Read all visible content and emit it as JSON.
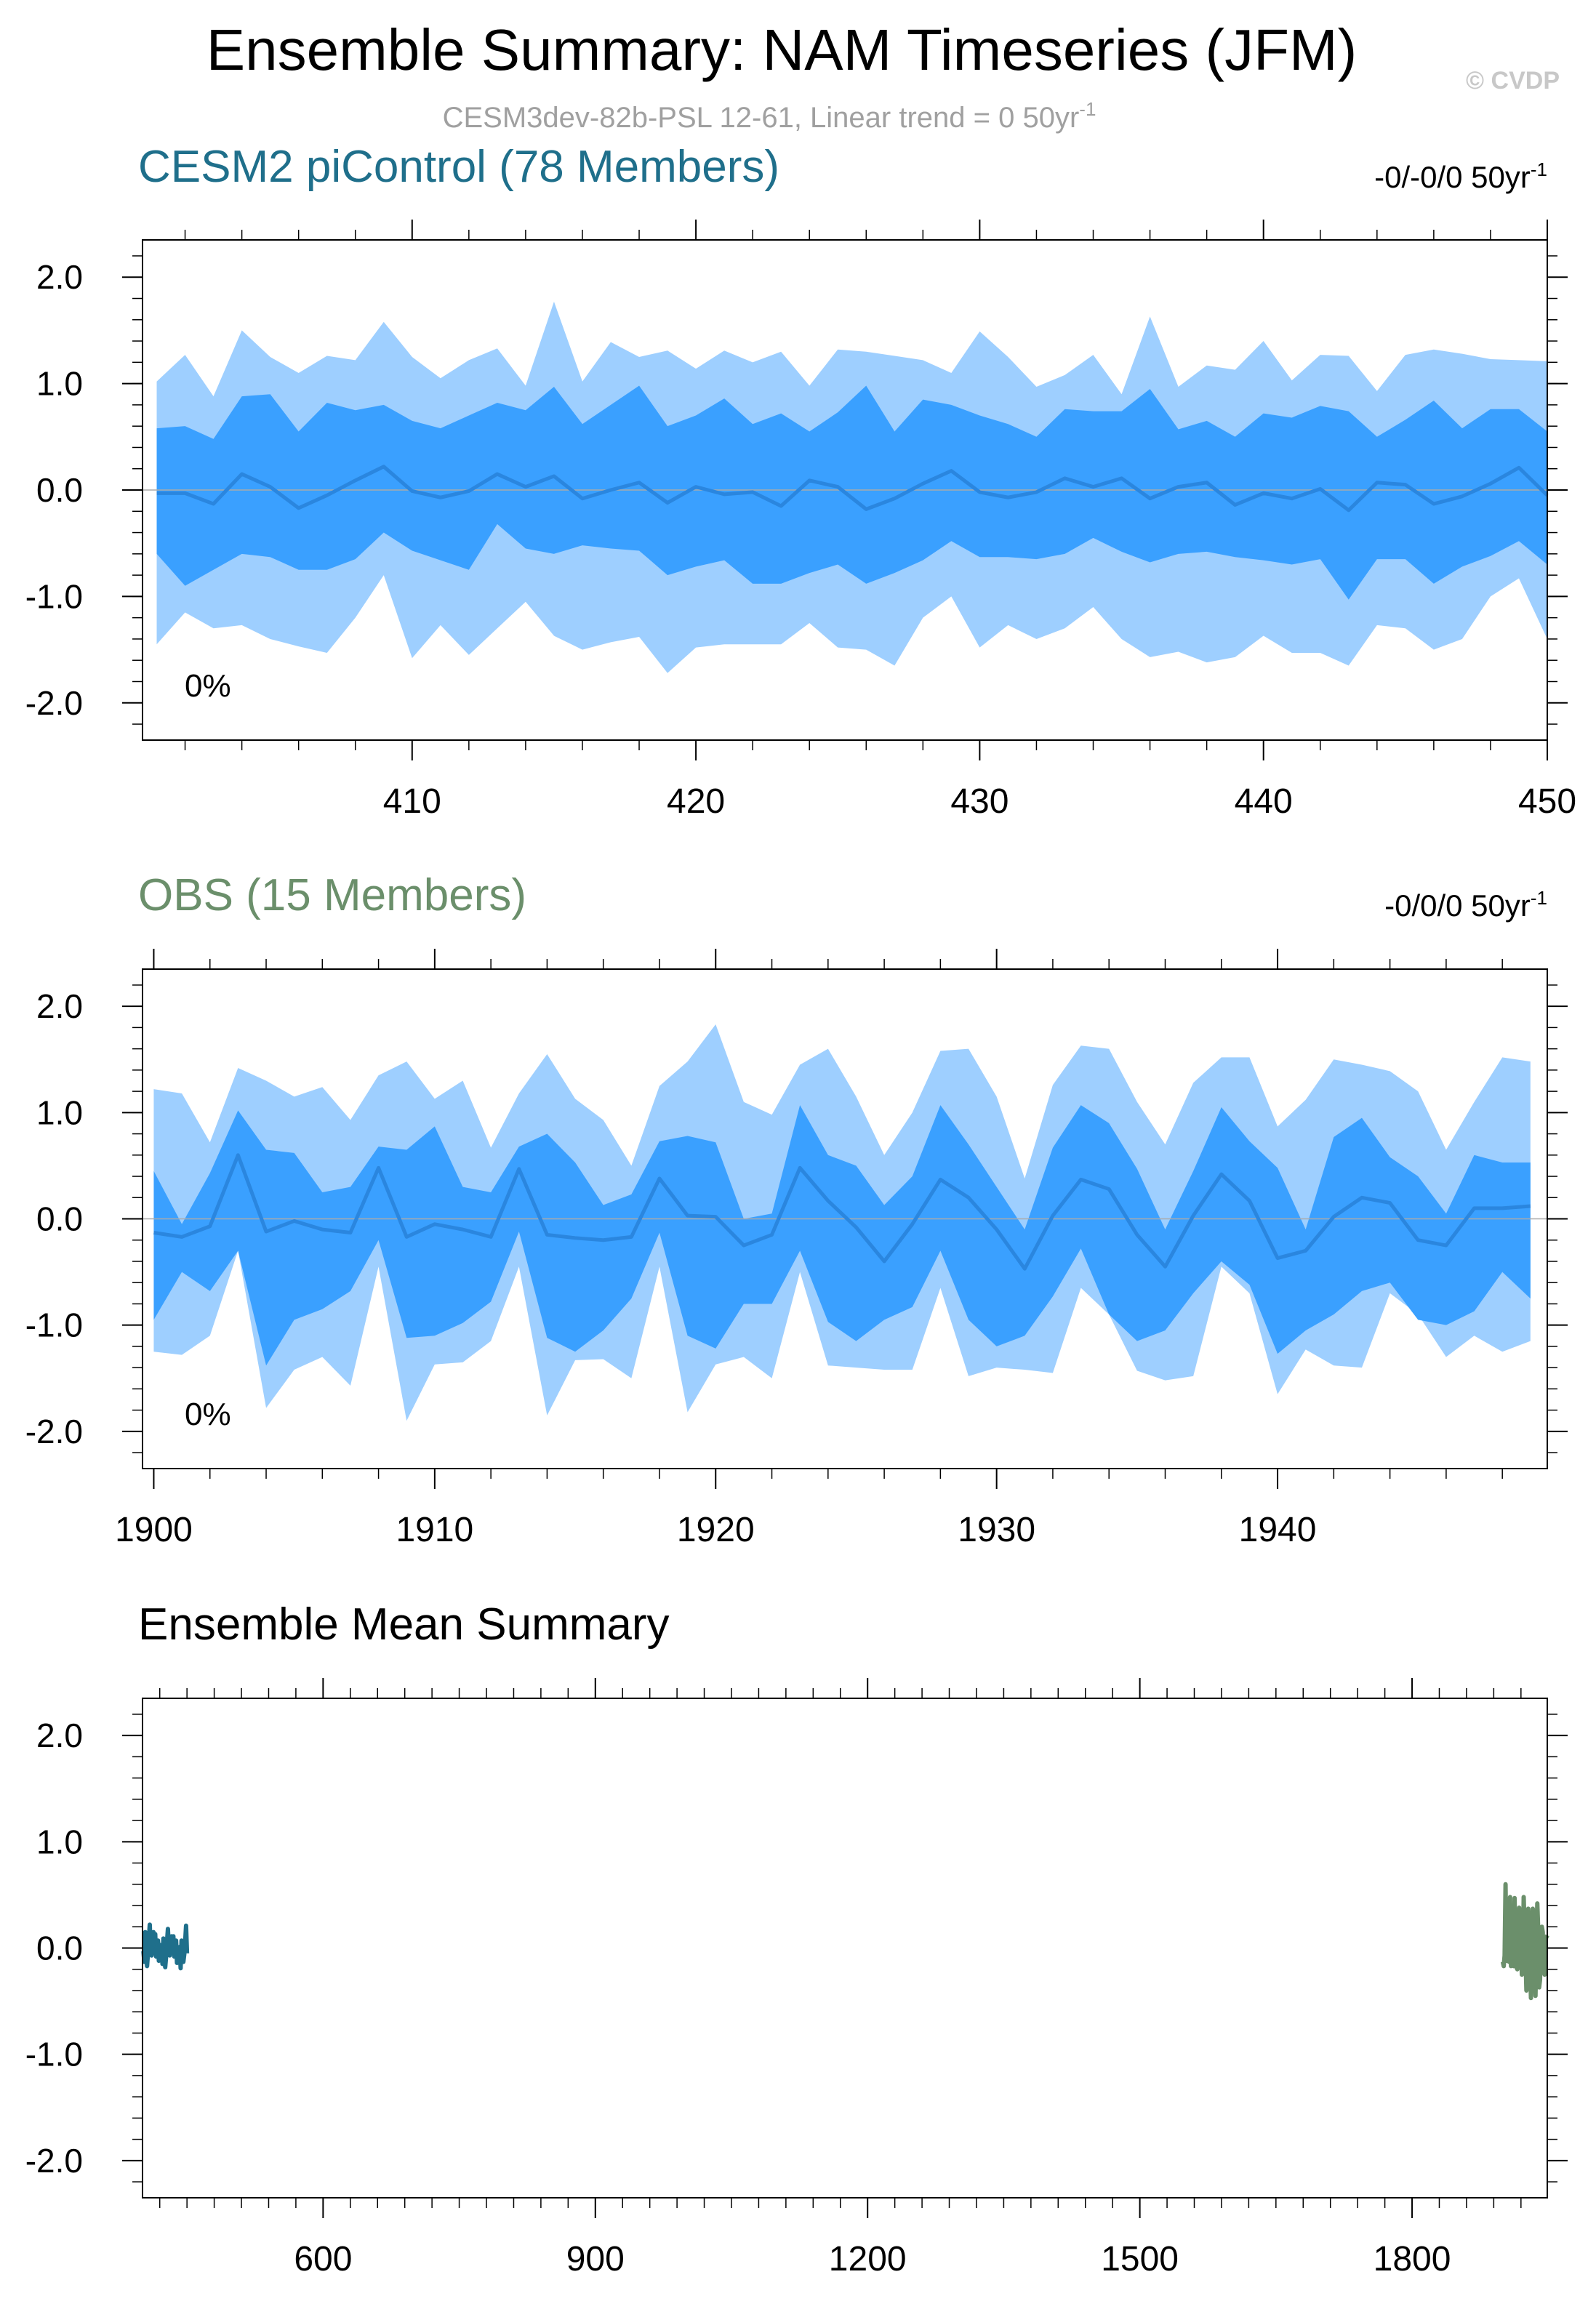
{
  "title": "Ensemble Summary: NAM Timeseries (JFM)",
  "watermark": "© CVDP",
  "subtitle": "CESM3dev-82b-PSL 12-61, Linear trend = 0 50yr",
  "subtitle_sup": "-1",
  "colors": {
    "band_outer": "#9ecfff",
    "band_inner": "#3aa0ff",
    "mean_line": "#2a86df",
    "model_title": "#1f6f8b",
    "obs_title": "#6b8f6b",
    "model_series": "#1f6f8b",
    "obs_series": "#6b8f6b",
    "zero_line": "#aaaaaa",
    "subtitle": "#a0a0a0"
  },
  "chart_data": [
    {
      "type": "area",
      "title": "CESM2 piControl (78 Members)",
      "trend_label": "-0/-0/0 50yr",
      "trend_sup": "-1",
      "pct_label": "0%",
      "x_start": 401,
      "xlim": [
        400.5,
        450
      ],
      "ylim": [
        -2.35,
        2.35
      ],
      "x_ticks": [
        410,
        420,
        430,
        440,
        450
      ],
      "y_ticks": [
        2.0,
        1.0,
        0.0,
        -1.0,
        -2.0
      ],
      "y_tick_labels": [
        "2.0",
        "1.0",
        "0.0",
        "-1.0",
        "-2.0"
      ],
      "series": [
        {
          "name": "max",
          "values": [
            1.02,
            1.27,
            0.88,
            1.5,
            1.25,
            1.1,
            1.26,
            1.22,
            1.58,
            1.25,
            1.05,
            1.22,
            1.33,
            0.98,
            1.77,
            1.02,
            1.39,
            1.25,
            1.31,
            1.14,
            1.31,
            1.2,
            1.3,
            0.98,
            1.32,
            1.3,
            1.26,
            1.22,
            1.1,
            1.49,
            1.25,
            0.97,
            1.08,
            1.27,
            0.9,
            1.63,
            0.97,
            1.17,
            1.13,
            1.4,
            1.03,
            1.27,
            1.26,
            0.93,
            1.27,
            1.32,
            1.28,
            1.23,
            1.22,
            1.21
          ]
        },
        {
          "name": "p90",
          "values": [
            0.58,
            0.6,
            0.48,
            0.88,
            0.9,
            0.55,
            0.82,
            0.75,
            0.8,
            0.65,
            0.58,
            0.7,
            0.82,
            0.75,
            0.97,
            0.62,
            0.8,
            0.98,
            0.6,
            0.7,
            0.86,
            0.62,
            0.72,
            0.55,
            0.73,
            0.98,
            0.55,
            0.85,
            0.8,
            0.7,
            0.62,
            0.5,
            0.76,
            0.74,
            0.74,
            0.95,
            0.57,
            0.65,
            0.5,
            0.72,
            0.68,
            0.79,
            0.74,
            0.5,
            0.66,
            0.84,
            0.58,
            0.76,
            0.76,
            0.55
          ]
        },
        {
          "name": "mean",
          "values": [
            -0.03,
            -0.03,
            -0.13,
            0.15,
            0.03,
            -0.17,
            -0.05,
            0.09,
            0.22,
            -0.01,
            -0.07,
            -0.01,
            0.15,
            0.03,
            0.13,
            -0.08,
            0.0,
            0.07,
            -0.12,
            0.03,
            -0.04,
            -0.02,
            -0.15,
            0.09,
            0.03,
            -0.18,
            -0.08,
            0.06,
            0.18,
            -0.02,
            -0.07,
            -0.02,
            0.11,
            0.03,
            0.11,
            -0.08,
            0.03,
            0.07,
            -0.14,
            -0.03,
            -0.08,
            0.01,
            -0.19,
            0.07,
            0.05,
            -0.13,
            -0.06,
            0.06,
            0.21,
            -0.05
          ]
        },
        {
          "name": "p10",
          "values": [
            -0.6,
            -0.9,
            -0.75,
            -0.6,
            -0.63,
            -0.75,
            -0.75,
            -0.65,
            -0.4,
            -0.57,
            -0.66,
            -0.75,
            -0.32,
            -0.55,
            -0.6,
            -0.52,
            -0.55,
            -0.57,
            -0.8,
            -0.72,
            -0.66,
            -0.88,
            -0.88,
            -0.78,
            -0.7,
            -0.88,
            -0.78,
            -0.66,
            -0.48,
            -0.63,
            -0.63,
            -0.65,
            -0.6,
            -0.45,
            -0.58,
            -0.68,
            -0.6,
            -0.58,
            -0.63,
            -0.66,
            -0.7,
            -0.65,
            -1.03,
            -0.65,
            -0.65,
            -0.88,
            -0.72,
            -0.62,
            -0.48,
            -0.7
          ]
        },
        {
          "name": "min",
          "values": [
            -1.45,
            -1.15,
            -1.3,
            -1.27,
            -1.4,
            -1.47,
            -1.53,
            -1.2,
            -0.8,
            -1.58,
            -1.27,
            -1.55,
            -1.3,
            -1.05,
            -1.37,
            -1.5,
            -1.43,
            -1.38,
            -1.72,
            -1.48,
            -1.45,
            -1.45,
            -1.45,
            -1.25,
            -1.48,
            -1.5,
            -1.65,
            -1.2,
            -1.0,
            -1.48,
            -1.27,
            -1.4,
            -1.3,
            -1.1,
            -1.4,
            -1.57,
            -1.52,
            -1.62,
            -1.57,
            -1.37,
            -1.53,
            -1.53,
            -1.65,
            -1.27,
            -1.3,
            -1.5,
            -1.4,
            -1.0,
            -0.83,
            -1.4
          ]
        }
      ]
    },
    {
      "type": "area",
      "title": "OBS (15 Members)",
      "trend_label": "-0/0/0 50yr",
      "trend_sup": "-1",
      "pct_label": "0%",
      "x_start": 1900,
      "xlim": [
        1899.6,
        1949.6
      ],
      "ylim": [
        -2.35,
        2.35
      ],
      "x_ticks": [
        1900,
        1910,
        1920,
        1930,
        1940
      ],
      "y_ticks": [
        2.0,
        1.0,
        0.0,
        -1.0,
        -2.0
      ],
      "y_tick_labels": [
        "2.0",
        "1.0",
        "0.0",
        "-1.0",
        "-2.0"
      ],
      "series": [
        {
          "name": "max",
          "values": [
            1.22,
            1.18,
            0.72,
            1.42,
            1.3,
            1.15,
            1.24,
            0.93,
            1.35,
            1.48,
            1.13,
            1.3,
            0.67,
            1.18,
            1.55,
            1.13,
            0.93,
            0.5,
            1.25,
            1.48,
            1.83,
            1.1,
            0.98,
            1.45,
            1.6,
            1.15,
            0.6,
            1.0,
            1.58,
            1.6,
            1.15,
            0.38,
            1.26,
            1.63,
            1.6,
            1.1,
            0.7,
            1.28,
            1.52,
            1.52,
            0.87,
            1.12,
            1.5,
            1.45,
            1.39,
            1.2,
            0.65,
            1.1,
            1.52,
            1.48
          ]
        },
        {
          "name": "p90",
          "values": [
            0.45,
            -0.05,
            0.43,
            1.02,
            0.65,
            0.62,
            0.25,
            0.3,
            0.68,
            0.65,
            0.87,
            0.3,
            0.25,
            0.68,
            0.8,
            0.53,
            0.13,
            0.23,
            0.73,
            0.78,
            0.72,
            0.0,
            0.05,
            1.07,
            0.6,
            0.5,
            0.13,
            0.4,
            1.07,
            0.7,
            0.3,
            -0.1,
            0.67,
            1.07,
            0.9,
            0.47,
            -0.1,
            0.45,
            1.05,
            0.73,
            0.48,
            -0.1,
            0.77,
            0.95,
            0.58,
            0.4,
            0.05,
            0.6,
            0.53,
            0.53
          ]
        },
        {
          "name": "mean",
          "values": [
            -0.13,
            -0.17,
            -0.07,
            0.6,
            -0.12,
            -0.02,
            -0.1,
            -0.13,
            0.48,
            -0.17,
            -0.05,
            -0.1,
            -0.17,
            0.47,
            -0.15,
            -0.18,
            -0.2,
            -0.17,
            0.38,
            0.03,
            0.02,
            -0.25,
            -0.15,
            0.48,
            0.17,
            -0.08,
            -0.4,
            -0.05,
            0.37,
            0.2,
            -0.1,
            -0.47,
            0.03,
            0.37,
            0.28,
            -0.15,
            -0.45,
            0.03,
            0.42,
            0.17,
            -0.37,
            -0.3,
            0.02,
            0.2,
            0.15,
            -0.2,
            -0.25,
            0.1,
            0.1,
            0.12
          ]
        },
        {
          "name": "p10",
          "values": [
            -0.95,
            -0.5,
            -0.68,
            -0.3,
            -1.38,
            -0.95,
            -0.85,
            -0.68,
            -0.2,
            -1.12,
            -1.1,
            -0.98,
            -0.78,
            -0.12,
            -1.12,
            -1.25,
            -1.05,
            -0.75,
            -0.13,
            -1.1,
            -1.22,
            -0.8,
            -0.8,
            -0.3,
            -0.97,
            -1.15,
            -0.95,
            -0.83,
            -0.3,
            -0.95,
            -1.2,
            -1.1,
            -0.73,
            -0.28,
            -0.9,
            -1.15,
            -1.05,
            -0.7,
            -0.4,
            -0.62,
            -1.27,
            -1.05,
            -0.9,
            -0.68,
            -0.6,
            -0.95,
            -1.0,
            -0.87,
            -0.5,
            -0.75
          ]
        },
        {
          "name": "min",
          "values": [
            -1.25,
            -1.28,
            -1.1,
            -0.3,
            -1.78,
            -1.42,
            -1.3,
            -1.57,
            -0.45,
            -1.9,
            -1.37,
            -1.35,
            -1.15,
            -0.45,
            -1.85,
            -1.33,
            -1.32,
            -1.5,
            -0.45,
            -1.82,
            -1.37,
            -1.3,
            -1.5,
            -0.5,
            -1.38,
            -1.4,
            -1.42,
            -1.42,
            -0.65,
            -1.48,
            -1.4,
            -1.42,
            -1.45,
            -0.65,
            -0.9,
            -1.43,
            -1.52,
            -1.48,
            -0.45,
            -0.7,
            -1.65,
            -1.23,
            -1.38,
            -1.4,
            -0.7,
            -0.9,
            -1.3,
            -1.1,
            -1.25,
            -1.15
          ]
        }
      ]
    },
    {
      "type": "line",
      "title": "Ensemble Mean Summary",
      "xlim": [
        401,
        1949
      ],
      "ylim": [
        -2.35,
        2.35
      ],
      "x_ticks": [
        600,
        900,
        1200,
        1500,
        1800
      ],
      "y_ticks": [
        2.0,
        1.0,
        0.0,
        -1.0,
        -2.0
      ],
      "y_tick_labels": [
        "2.0",
        "1.0",
        "0.0",
        "-1.0",
        "-2.0"
      ],
      "series": [
        {
          "name": "CESM2 piControl (78 Members)",
          "x_start": 401,
          "values": [
            -0.03,
            -0.03,
            -0.13,
            0.15,
            0.03,
            -0.17,
            -0.05,
            0.09,
            0.22,
            -0.01,
            -0.07,
            -0.01,
            0.15,
            0.03,
            0.13,
            -0.08,
            0.0,
            0.07,
            -0.12,
            0.03,
            -0.04,
            -0.02,
            -0.15,
            0.09,
            0.03,
            -0.18,
            -0.08,
            0.06,
            0.18,
            -0.02,
            -0.07,
            -0.02,
            0.11,
            0.03,
            0.11,
            -0.08,
            0.03,
            0.07,
            -0.14,
            -0.03,
            -0.08,
            0.01,
            -0.19,
            0.07,
            0.05,
            -0.13,
            -0.06,
            0.06,
            0.21,
            -0.05
          ]
        },
        {
          "name": "OBS (15 Members)",
          "x_start": 1900,
          "values": [
            -0.13,
            -0.17,
            -0.07,
            0.6,
            -0.12,
            -0.02,
            -0.1,
            -0.13,
            0.48,
            -0.17,
            -0.05,
            -0.1,
            -0.17,
            0.47,
            -0.15,
            -0.18,
            -0.2,
            -0.17,
            0.38,
            0.03,
            0.02,
            -0.25,
            -0.15,
            0.48,
            0.17,
            -0.08,
            -0.4,
            -0.05,
            0.37,
            0.2,
            -0.1,
            -0.47,
            0.03,
            0.37,
            0.28,
            -0.15,
            -0.45,
            0.03,
            0.42,
            0.17,
            -0.37,
            -0.3,
            0.02,
            0.2,
            0.15,
            -0.2,
            -0.25,
            0.1,
            0.1,
            0.12
          ]
        }
      ]
    }
  ]
}
